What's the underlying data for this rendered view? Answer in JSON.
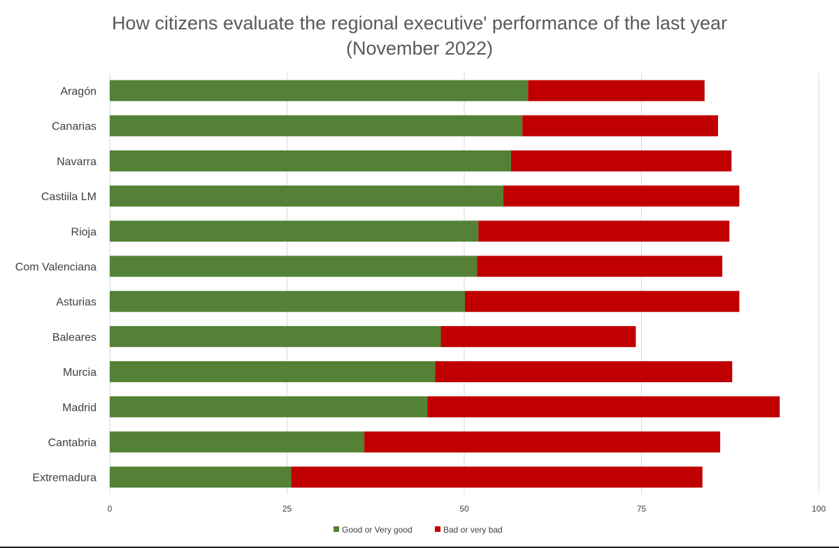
{
  "chart_data": {
    "type": "bar",
    "orientation": "horizontal",
    "stacked": true,
    "title": "How citizens evaluate the regional executive' performance of the last year",
    "subtitle": "(November 2022)",
    "xlabel": "",
    "ylabel": "",
    "xlim": [
      0,
      100
    ],
    "xticks": [
      "0",
      "25",
      "50",
      "75",
      "100"
    ],
    "grid": "vertical",
    "legend_position": "bottom",
    "categories": [
      "Aragón",
      "Canarias",
      "Navarra",
      "Castiila LM",
      "Rioja",
      "Com Valenciana",
      "Asturias",
      "Baleares",
      "Murcia",
      "Madrid",
      "Cantabria",
      "Extremadura"
    ],
    "series": [
      {
        "name": "Good or Very good",
        "color": "#538135",
        "values": [
          59,
          58.2,
          56.6,
          55.5,
          52,
          51.8,
          50.1,
          46.7,
          45.9,
          44.8,
          35.9,
          25.6
        ]
      },
      {
        "name": "Bad or very bad",
        "color": "#c00000",
        "values": [
          24.9,
          27.6,
          31.1,
          33.3,
          35.4,
          34.6,
          38.7,
          27.5,
          41.9,
          49.7,
          50.2,
          58
        ]
      }
    ]
  }
}
